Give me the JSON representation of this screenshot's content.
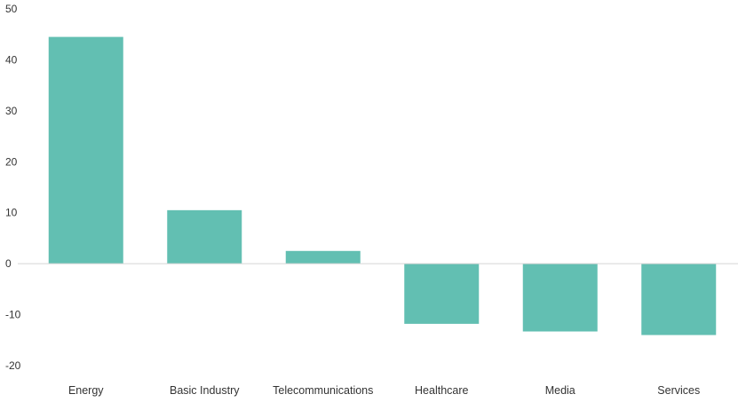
{
  "chart_data": {
    "type": "bar",
    "categories": [
      "Energy",
      "Basic Industry",
      "Telecommunications",
      "Healthcare",
      "Media",
      "Services"
    ],
    "series": [
      {
        "values": [
          44.5,
          10.5,
          2.5,
          -11.8,
          -13.3,
          -14.0
        ]
      }
    ],
    "title": "",
    "xlabel": "",
    "ylabel": "",
    "ylim": [
      -20,
      50
    ],
    "yticks": [
      "-20",
      "-10",
      "0",
      "10",
      "20",
      "30",
      "40",
      "50"
    ],
    "grid": false,
    "legend": "none",
    "colors": {
      "bar": "#62bfb2",
      "zero_line": "#d5d5d5",
      "text": "#333333"
    }
  }
}
